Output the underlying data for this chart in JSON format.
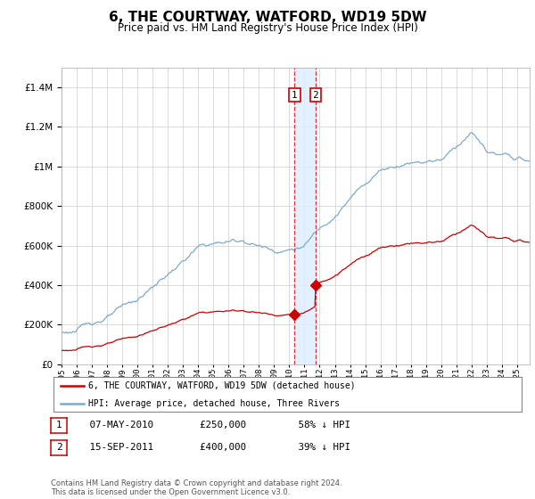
{
  "title": "6, THE COURTWAY, WATFORD, WD19 5DW",
  "subtitle": "Price paid vs. HM Land Registry's House Price Index (HPI)",
  "title_fontsize": 11,
  "subtitle_fontsize": 8.5,
  "legend_line1": "6, THE COURTWAY, WATFORD, WD19 5DW (detached house)",
  "legend_line2": "HPI: Average price, detached house, Three Rivers",
  "red_color": "#cc0000",
  "blue_color": "#7faacc",
  "shade_color": "#ddeeff",
  "transaction1_date_num": 2010.35,
  "transaction1_price": 250000,
  "transaction2_date_num": 2011.72,
  "transaction2_price": 400000,
  "table_row1": [
    "1",
    "07-MAY-2010",
    "£250,000",
    "58% ↓ HPI"
  ],
  "table_row2": [
    "2",
    "15-SEP-2011",
    "£400,000",
    "39% ↓ HPI"
  ],
  "footer": "Contains HM Land Registry data © Crown copyright and database right 2024.\nThis data is licensed under the Open Government Licence v3.0.",
  "ylim_max": 1500000,
  "xlim_start": 1995.0,
  "xlim_end": 2025.83
}
